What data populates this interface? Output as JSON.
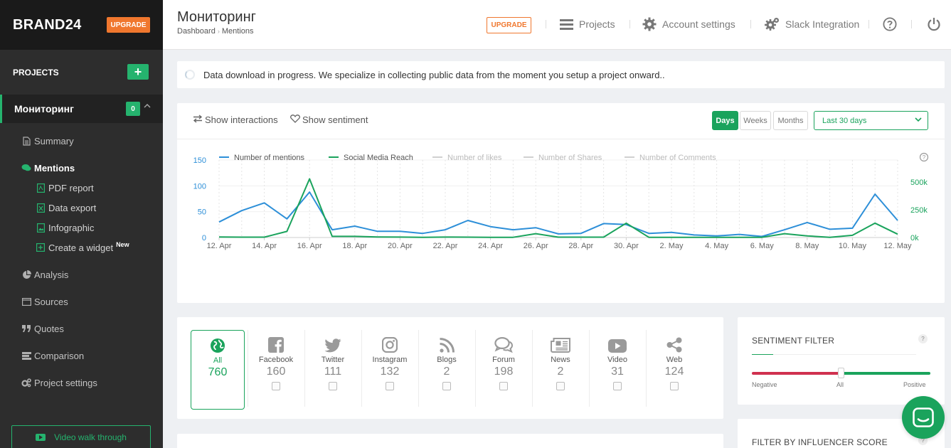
{
  "sidebar": {
    "brand": "BRAND24",
    "upgrade_label": "UPGRADE",
    "projects_label": "PROJECTS",
    "add_label": "+",
    "project": {
      "name": "Мониторинг",
      "badge": "0"
    },
    "nav": {
      "summary": "Summary",
      "mentions": "Mentions",
      "pdf_report": "PDF report",
      "data_export": "Data export",
      "infographic": "Infographic",
      "create_widget": "Create a widget",
      "new_tag": "New",
      "analysis": "Analysis",
      "sources": "Sources",
      "quotes": "Quotes",
      "comparison": "Comparison",
      "project_settings": "Project settings"
    },
    "video_label": "Video walk through"
  },
  "header": {
    "title": "Мониторинг",
    "breadcrumb": [
      "Dashboard",
      "Mentions"
    ],
    "upgrade_label": "UPGRADE",
    "projects_label": "Projects",
    "account_label": "Account settings",
    "slack_label": "Slack Integration"
  },
  "notice": "Data download in progress. We specialize in collecting public data from the moment you setup a project onward..",
  "chart_toolbar": {
    "show_interactions": "Show interactions",
    "show_sentiment": "Show sentiment",
    "period_buttons": [
      "Days",
      "Weeks",
      "Months"
    ],
    "active_period": "Days",
    "range": "Last 30 days"
  },
  "colors": {
    "accent": "#1aa35c",
    "mentions_line": "#2d8fd8",
    "reach_line": "#1aa35c",
    "upgrade": "#f0772e",
    "negative": "#d0314f"
  },
  "chart_data": {
    "type": "line",
    "legend": [
      {
        "name": "Number of mentions",
        "color": "#2d8fd8",
        "active": true
      },
      {
        "name": "Social Media Reach",
        "color": "#1aa35c",
        "active": true
      },
      {
        "name": "Number of likes",
        "color": "#d0d0d0",
        "active": false
      },
      {
        "name": "Number of Shares",
        "color": "#d0d0d0",
        "active": false
      },
      {
        "name": "Number of Comments",
        "color": "#d0d0d0",
        "active": false
      }
    ],
    "x": [
      "12. Apr",
      "13. Apr",
      "14. Apr",
      "15. Apr",
      "16. Apr",
      "17. Apr",
      "18. Apr",
      "19. Apr",
      "20. Apr",
      "21. Apr",
      "22. Apr",
      "23. Apr",
      "24. Apr",
      "25. Apr",
      "26. Apr",
      "27. Apr",
      "28. Apr",
      "29. Apr",
      "30. Apr",
      "1. May",
      "2. May",
      "3. May",
      "4. May",
      "5. May",
      "6. May",
      "7. May",
      "8. May",
      "9. May",
      "10. May",
      "11. May",
      "12. May"
    ],
    "x_tick_labels": [
      "12. Apr",
      "14. Apr",
      "16. Apr",
      "18. Apr",
      "20. Apr",
      "22. Apr",
      "24. Apr",
      "26. Apr",
      "28. Apr",
      "30. Apr",
      "2. May",
      "4. May",
      "6. May",
      "8. May",
      "10. May",
      "12. May"
    ],
    "y_left_ticks": [
      "0",
      "50",
      "100",
      "150"
    ],
    "y_left_range": [
      0,
      150
    ],
    "y_right_ticks": [
      "0k",
      "250k",
      "500k"
    ],
    "y_right_range": [
      0,
      700000
    ],
    "series": [
      {
        "name": "Number of mentions",
        "axis": "left",
        "values": [
          30,
          52,
          67,
          36,
          88,
          15,
          22,
          12,
          12,
          8,
          15,
          33,
          21,
          15,
          19,
          7,
          8,
          27,
          25,
          8,
          10,
          5,
          3,
          6,
          2,
          15,
          29,
          16,
          18,
          84,
          33
        ]
      },
      {
        "name": "Social Media Reach",
        "axis": "right",
        "values": [
          5000,
          3000,
          3000,
          55000,
          530000,
          10000,
          10000,
          5000,
          4000,
          2000,
          4000,
          3000,
          2000,
          2000,
          35000,
          3000,
          3000,
          3000,
          130000,
          2000,
          2000,
          2000,
          2000,
          2000,
          2000,
          35000,
          15000,
          2000,
          20000,
          130000,
          30000
        ]
      }
    ]
  },
  "channels": [
    {
      "label": "All",
      "count": "760",
      "icon": "globe-icon",
      "selected": true
    },
    {
      "label": "Facebook",
      "count": "160",
      "icon": "facebook-icon"
    },
    {
      "label": "Twitter",
      "count": "111",
      "icon": "twitter-icon"
    },
    {
      "label": "Instagram",
      "count": "132",
      "icon": "instagram-icon"
    },
    {
      "label": "Blogs",
      "count": "2",
      "icon": "rss-icon"
    },
    {
      "label": "Forum",
      "count": "198",
      "icon": "forum-icon"
    },
    {
      "label": "News",
      "count": "2",
      "icon": "news-icon"
    },
    {
      "label": "Video",
      "count": "31",
      "icon": "video-icon"
    },
    {
      "label": "Web",
      "count": "124",
      "icon": "share-icon"
    }
  ],
  "sentiment": {
    "title": "SENTIMENT FILTER",
    "negative": "Negative",
    "all": "All",
    "positive": "Positive",
    "value": 0.5
  },
  "influencer": {
    "title": "FILTER BY INFLUENCER SCORE"
  },
  "help_glyph": "?"
}
